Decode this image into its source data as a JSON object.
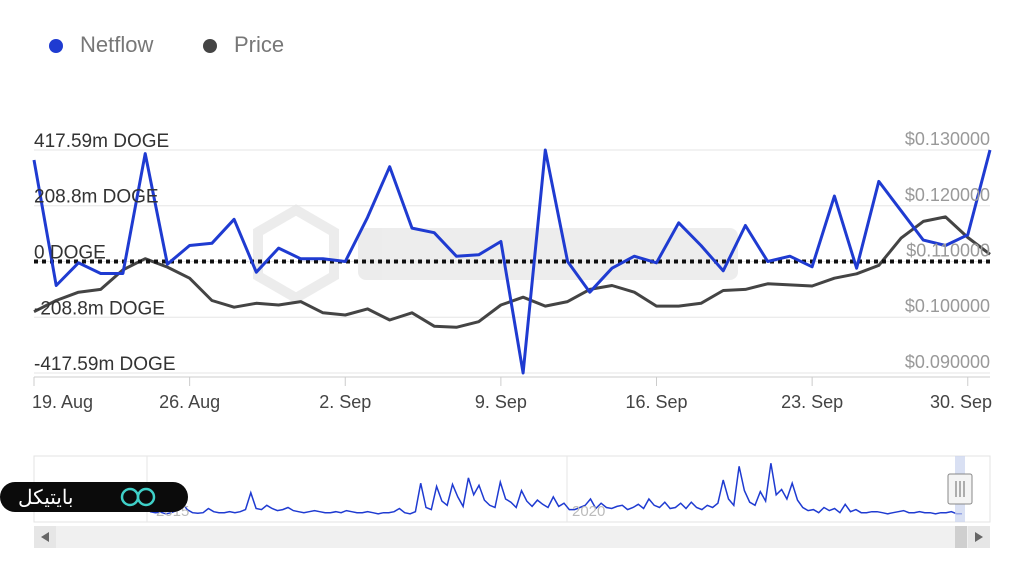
{
  "legend": [
    {
      "name": "Netflow",
      "color": "#1f3bd1"
    },
    {
      "name": "Price",
      "color": "#444444"
    }
  ],
  "colors": {
    "netflow": "#1f3bd1",
    "price": "#444444",
    "zero_line": "#111111",
    "grid": "#e6e6e6"
  },
  "chart_data": {
    "type": "line",
    "x_dates": [
      "2023-08-19",
      "2023-08-20",
      "2023-08-21",
      "2023-08-22",
      "2023-08-23",
      "2023-08-24",
      "2023-08-25",
      "2023-08-26",
      "2023-08-27",
      "2023-08-28",
      "2023-08-29",
      "2023-08-30",
      "2023-08-31",
      "2023-09-01",
      "2023-09-02",
      "2023-09-03",
      "2023-09-04",
      "2023-09-05",
      "2023-09-06",
      "2023-09-07",
      "2023-09-08",
      "2023-09-09",
      "2023-09-10",
      "2023-09-11",
      "2023-09-12",
      "2023-09-13",
      "2023-09-14",
      "2023-09-15",
      "2023-09-16",
      "2023-09-17",
      "2023-09-18",
      "2023-09-19",
      "2023-09-20",
      "2023-09-21",
      "2023-09-22",
      "2023-09-23",
      "2023-09-24",
      "2023-09-25",
      "2023-09-26",
      "2023-09-27",
      "2023-09-28",
      "2023-09-29",
      "2023-09-30",
      "2023-10-01"
    ],
    "series": [
      {
        "name": "Netflow",
        "axis": "left",
        "unit": "m DOGE",
        "values": [
          380,
          -90,
          -5,
          -45,
          -45,
          404,
          -10,
          60,
          68,
          158,
          -40,
          50,
          10,
          10,
          0,
          165,
          355,
          125,
          108,
          20,
          25,
          75,
          -417.59,
          417.59,
          0,
          -115,
          -25,
          20,
          -5,
          145,
          60,
          -35,
          135,
          0,
          20,
          -20,
          245,
          -25,
          300,
          190,
          80,
          60,
          100,
          417.59
        ]
      },
      {
        "name": "Price",
        "axis": "right",
        "unit": "$",
        "values": [
          0.101,
          0.103,
          0.1045,
          0.105,
          0.1085,
          0.1105,
          0.109,
          0.107,
          0.103,
          0.1018,
          0.1025,
          0.1022,
          0.1028,
          0.1008,
          0.1004,
          0.1015,
          0.0995,
          0.1008,
          0.0984,
          0.0982,
          0.0992,
          0.1022,
          0.1036,
          0.102,
          0.1028,
          0.105,
          0.1057,
          0.1045,
          0.102,
          0.102,
          0.1025,
          0.1048,
          0.105,
          0.106,
          0.1058,
          0.1056,
          0.107,
          0.1078,
          0.1093,
          0.1142,
          0.1172,
          0.118,
          0.1143,
          0.1113
        ]
      }
    ],
    "y_left": {
      "range": [
        -417.59,
        417.59
      ],
      "ticks": [
        "417.59m DOGE",
        "208.8m DOGE",
        "0 DOGE",
        "-208.8m DOGE",
        "-417.59m DOGE"
      ]
    },
    "y_right": {
      "range": [
        0.09,
        0.13
      ],
      "ticks": [
        "$0.130000",
        "$0.120000",
        "$0.110000",
        "$0.100000",
        "$0.090000"
      ]
    },
    "x_ticks": [
      {
        "label": "19. Aug",
        "date": "2023-08-19"
      },
      {
        "label": "26. Aug",
        "date": "2023-08-26"
      },
      {
        "label": "2. Sep",
        "date": "2023-09-02"
      },
      {
        "label": "9. Sep",
        "date": "2023-09-09"
      },
      {
        "label": "16. Sep",
        "date": "2023-09-16"
      },
      {
        "label": "23. Sep",
        "date": "2023-09-23"
      },
      {
        "label": "30. Sep",
        "date": "2023-09-30"
      }
    ],
    "navigator_labels": [
      "2015",
      "2020"
    ],
    "navigator_values": [
      0.6,
      0.5,
      0.55,
      0.4,
      0.5,
      0.7,
      1.5,
      0.8,
      0.5,
      0.45,
      0.5,
      0.9,
      0.6,
      0.5,
      0.5,
      0.6,
      0.5,
      0.6,
      0.8,
      2.4,
      0.9,
      0.8,
      1.2,
      0.9,
      0.7,
      0.8,
      1.0,
      0.7,
      0.6,
      0.5,
      0.6,
      0.7,
      0.6,
      0.5,
      0.5,
      0.6,
      0.5,
      0.7,
      0.6,
      0.5,
      0.5,
      0.6,
      0.5,
      0.4,
      0.5,
      0.5,
      0.6,
      0.9,
      0.5,
      0.4,
      0.6,
      3.3,
      1.0,
      0.8,
      3.0,
      1.6,
      1.2,
      3.2,
      2.0,
      1.1,
      3.8,
      2.2,
      3.1,
      1.7,
      1.2,
      1.0,
      3.4,
      1.8,
      1.5,
      1.0,
      2.6,
      1.6,
      1.1,
      1.7,
      1.3,
      1.0,
      2.0,
      1.1,
      1.4,
      0.8,
      0.8,
      1.0,
      1.2,
      1.8,
      0.9,
      1.4,
      1.0,
      0.9,
      1.1,
      1.2,
      0.8,
      1.0,
      1.3,
      0.9,
      1.8,
      1.2,
      1.0,
      1.5,
      0.9,
      1.0,
      1.4,
      0.9,
      1.5,
      1.0,
      0.8,
      1.2,
      1.0,
      1.4,
      3.6,
      1.8,
      1.2,
      4.9,
      2.6,
      1.5,
      1.2,
      2.5,
      1.6,
      5.2,
      2.2,
      2.7,
      1.8,
      3.3,
      1.7,
      1.0,
      0.7,
      0.8,
      0.5,
      1.0,
      0.7,
      0.9,
      0.5,
      1.3,
      0.6,
      0.8,
      0.5,
      0.5,
      0.6,
      0.6,
      0.5,
      0.4,
      0.5,
      0.6,
      0.7,
      0.5,
      0.5,
      0.6,
      0.5,
      0.5,
      0.4,
      0.5,
      0.5,
      0.6,
      0.4,
      0.4
    ]
  },
  "brand": {
    "text": "بایتیکل"
  }
}
